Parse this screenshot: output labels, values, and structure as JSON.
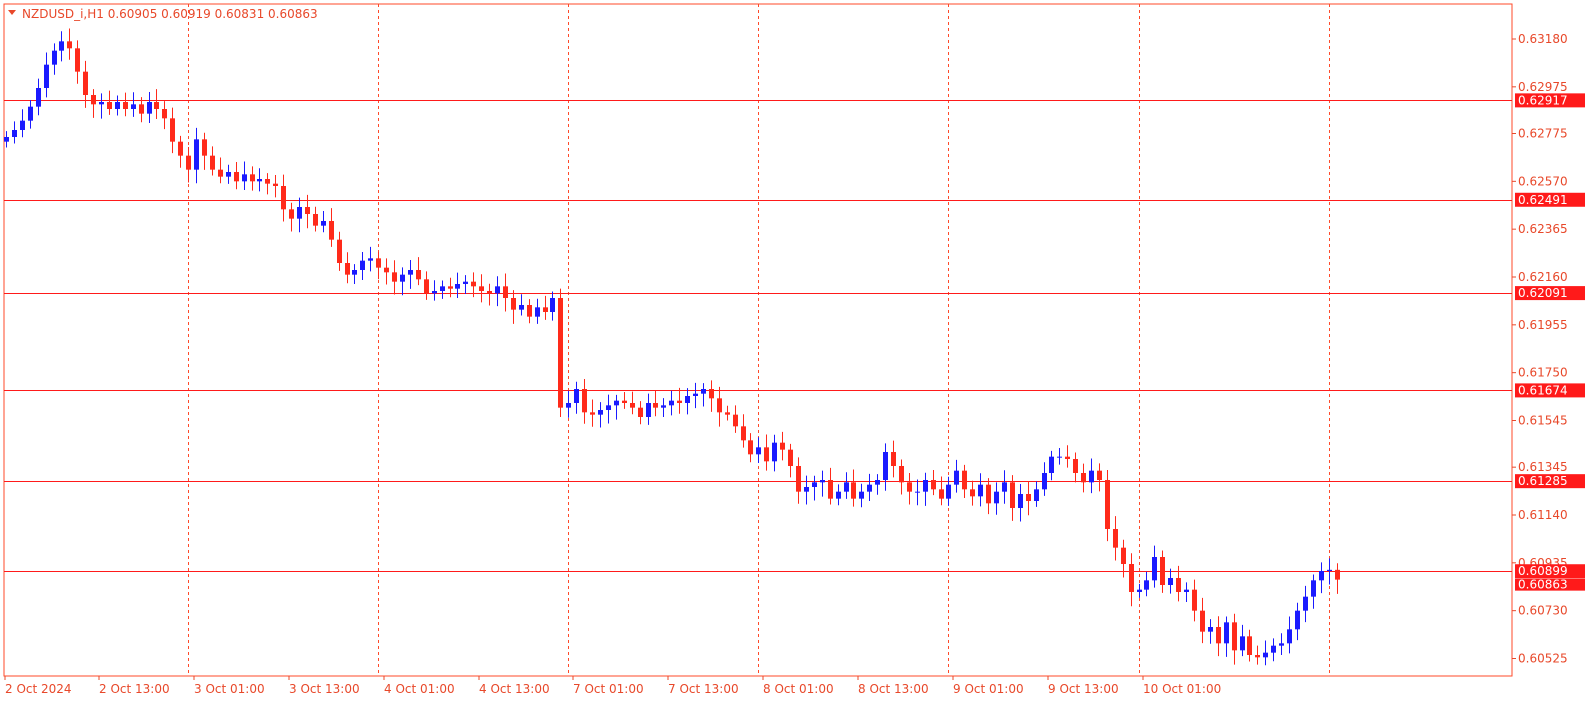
{
  "header": {
    "symbol_line": "NZDUSD_i,H1  0.60905 0.60919 0.60831 0.60863"
  },
  "colors": {
    "bull": "#1a1aff",
    "bear": "#ff2a1a",
    "axis_text": "#e8482a",
    "grid": "#ff4a2a",
    "level_line": "#ff1a1a",
    "background": "#ffffff"
  },
  "chart_data": {
    "type": "candlestick",
    "symbol": "NZDUSD_i",
    "timeframe": "H1",
    "last_ohlc": {
      "open": 0.60905,
      "high": 0.60919,
      "low": 0.60831,
      "close": 0.60863
    },
    "ylim": [
      0.6045,
      0.6333
    ],
    "y_ticks": [
      "0.63180",
      "0.62975",
      "0.62775",
      "0.62570",
      "0.62365",
      "0.62160",
      "0.61955",
      "0.61750",
      "0.61545",
      "0.61345",
      "0.61140",
      "0.60935",
      "0.60730",
      "0.60525"
    ],
    "x_ticks": [
      "2 Oct 2024",
      "2 Oct 13:00",
      "3 Oct 01:00",
      "3 Oct 13:00",
      "4 Oct 01:00",
      "4 Oct 13:00",
      "7 Oct 01:00",
      "7 Oct 13:00",
      "8 Oct 01:00",
      "8 Oct 13:00",
      "9 Oct 01:00",
      "9 Oct 13:00",
      "10 Oct 01:00"
    ],
    "day_separators": 7,
    "levels": [
      {
        "value": 0.62917,
        "label": "0.62917"
      },
      {
        "value": 0.62491,
        "label": "0.62491"
      },
      {
        "value": 0.62091,
        "label": "0.62091"
      },
      {
        "value": 0.61674,
        "label": "0.61674"
      },
      {
        "value": 0.61285,
        "label": "0.61285"
      },
      {
        "value": 0.60899,
        "label": "0.60899"
      }
    ],
    "bid_label": "0.60863",
    "bid_value": 0.60863,
    "closes": [
      0.6276,
      0.6279,
      0.6283,
      0.6289,
      0.6297,
      0.6307,
      0.6313,
      0.6317,
      0.6314,
      0.6304,
      0.6294,
      0.629,
      0.6291,
      0.6288,
      0.6291,
      0.6288,
      0.629,
      0.6286,
      0.6291,
      0.6288,
      0.6284,
      0.6274,
      0.6268,
      0.6262,
      0.6275,
      0.6268,
      0.6262,
      0.6259,
      0.6261,
      0.6257,
      0.626,
      0.6257,
      0.6258,
      0.6256,
      0.6255,
      0.6245,
      0.6241,
      0.6246,
      0.6243,
      0.6238,
      0.624,
      0.6232,
      0.6222,
      0.6217,
      0.6219,
      0.6223,
      0.6224,
      0.622,
      0.6218,
      0.6214,
      0.6217,
      0.6219,
      0.6215,
      0.6209,
      0.621,
      0.6212,
      0.6211,
      0.6213,
      0.6214,
      0.6212,
      0.621,
      0.6209,
      0.6212,
      0.6207,
      0.6202,
      0.6204,
      0.6199,
      0.6203,
      0.6201,
      0.6207,
      0.616,
      0.6162,
      0.6168,
      0.6158,
      0.6157,
      0.6159,
      0.6161,
      0.6163,
      0.6162,
      0.616,
      0.6156,
      0.6162,
      0.616,
      0.6161,
      0.6163,
      0.6162,
      0.6165,
      0.6166,
      0.6168,
      0.6164,
      0.6158,
      0.6157,
      0.6152,
      0.6146,
      0.614,
      0.6143,
      0.6137,
      0.6145,
      0.6142,
      0.6135,
      0.6124,
      0.6126,
      0.6128,
      0.6129,
      0.6121,
      0.6124,
      0.6128,
      0.6121,
      0.6124,
      0.6127,
      0.6129,
      0.6141,
      0.6135,
      0.6128,
      0.6124,
      0.6124,
      0.6129,
      0.6125,
      0.6121,
      0.6127,
      0.6133,
      0.6125,
      0.6122,
      0.6127,
      0.6119,
      0.6124,
      0.6128,
      0.6117,
      0.6123,
      0.612,
      0.6125,
      0.6132,
      0.6139,
      0.6139,
      0.6138,
      0.6132,
      0.6128,
      0.6133,
      0.6129,
      0.6108,
      0.61,
      0.6093,
      0.6081,
      0.6082,
      0.6086,
      0.6096,
      0.6084,
      0.6087,
      0.6081,
      0.6082,
      0.6073,
      0.6064,
      0.6066,
      0.6059,
      0.6068,
      0.6056,
      0.6062,
      0.6054,
      0.6053,
      0.6055,
      0.6058,
      0.6059,
      0.6065,
      0.6073,
      0.6079,
      0.6086,
      0.609,
      0.60905,
      0.60863
    ]
  }
}
